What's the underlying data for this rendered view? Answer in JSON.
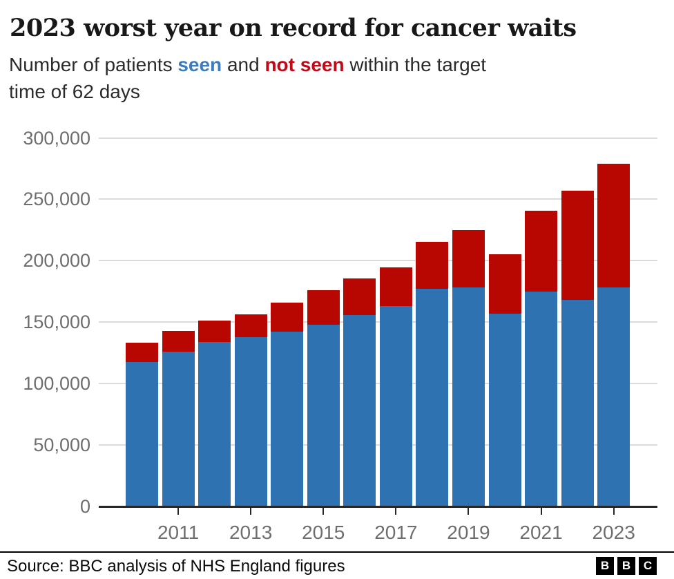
{
  "header": {
    "title": "2023 worst year on record for cancer waits",
    "subtitle_segments": [
      {
        "text": "Number of patients ",
        "style": "plain"
      },
      {
        "text": "seen",
        "style": "seen"
      },
      {
        "text": " and ",
        "style": "plain"
      },
      {
        "text": "not seen",
        "style": "notseen"
      },
      {
        "text": " within the target",
        "style": "plain"
      }
    ],
    "subtitle_line2": "time of 62 days"
  },
  "chart_data": {
    "type": "bar",
    "stacked": true,
    "title": "2023 worst year on record for cancer waits",
    "subtitle": "Number of patients seen and not seen within the target time of 62 days",
    "categories": [
      "2010",
      "2011",
      "2012",
      "2013",
      "2014",
      "2015",
      "2016",
      "2017",
      "2018",
      "2019",
      "2020",
      "2021",
      "2022",
      "2023"
    ],
    "series": [
      {
        "name": "seen",
        "color": "#2f72b2",
        "values": [
          117500,
          126000,
          134000,
          138000,
          142500,
          148000,
          156000,
          163000,
          177000,
          178500,
          157000,
          175000,
          168000,
          178000
        ]
      },
      {
        "name": "not seen",
        "color": "#b80600",
        "values": [
          15500,
          17000,
          17000,
          18500,
          23500,
          28000,
          29500,
          31500,
          38500,
          46500,
          48000,
          65500,
          89000,
          101000
        ]
      }
    ],
    "xlabel": "",
    "ylabel": "",
    "ylim": [
      0,
      300000
    ],
    "grid": "horizontal",
    "legend": "inline-in-subtitle",
    "y_ticks": [
      {
        "value": 0,
        "label": "0"
      },
      {
        "value": 50000,
        "label": "50,000"
      },
      {
        "value": 100000,
        "label": "100,000"
      },
      {
        "value": 150000,
        "label": "150,000"
      },
      {
        "value": 200000,
        "label": "200,000"
      },
      {
        "value": 250000,
        "label": "250,000"
      },
      {
        "value": 300000,
        "label": "300,000"
      }
    ],
    "x_tick_years": [
      "2011",
      "2013",
      "2015",
      "2017",
      "2019",
      "2021",
      "2023"
    ]
  },
  "footer": {
    "source": "Source: BBC analysis of NHS England figures",
    "logo_letters": [
      "B",
      "B",
      "C"
    ]
  },
  "colors": {
    "bar_seen": "#2f72b2",
    "bar_not_seen": "#b80600",
    "subtitle_seen_text": "#3f7cbd",
    "subtitle_not_seen_text": "#c10a17",
    "axis_label": "#6e6e6e",
    "gridline": "#dbdbdb",
    "axis_line": "#262626",
    "background": "#ffffff"
  }
}
